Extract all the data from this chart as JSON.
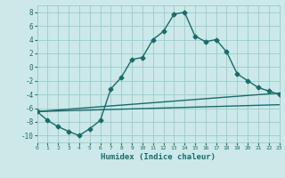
{
  "title": "",
  "xlabel": "Humidex (Indice chaleur)",
  "background_color": "#cce8e8",
  "grid_color": "#99cccc",
  "line_color": "#1a6b6b",
  "xlim": [
    0,
    23
  ],
  "ylim": [
    -11,
    9
  ],
  "xticks": [
    0,
    1,
    2,
    3,
    4,
    5,
    6,
    7,
    8,
    9,
    10,
    11,
    12,
    13,
    14,
    15,
    16,
    17,
    18,
    19,
    20,
    21,
    22,
    23
  ],
  "yticks": [
    -10,
    -8,
    -6,
    -4,
    -2,
    0,
    2,
    4,
    6,
    8
  ],
  "series1_x": [
    0,
    1,
    2,
    3,
    4,
    5,
    6,
    7,
    8,
    9,
    10,
    11,
    12,
    13,
    14,
    15,
    16,
    17,
    18,
    19,
    20,
    21,
    22,
    23
  ],
  "series1_y": [
    -6.5,
    -7.8,
    -8.7,
    -9.4,
    -10.0,
    -9.0,
    -7.8,
    -3.2,
    -1.5,
    1.1,
    1.4,
    4.0,
    5.2,
    7.7,
    8.0,
    4.5,
    3.7,
    4.0,
    2.2,
    -1.0,
    -2.0,
    -3.0,
    -3.5,
    -4.0
  ],
  "series2_x": [
    0,
    23
  ],
  "series2_y": [
    -6.5,
    -3.8
  ],
  "series3_x": [
    0,
    23
  ],
  "series3_y": [
    -6.5,
    -5.5
  ],
  "marker": "D",
  "markersize": 2.5,
  "linewidth": 1.0
}
